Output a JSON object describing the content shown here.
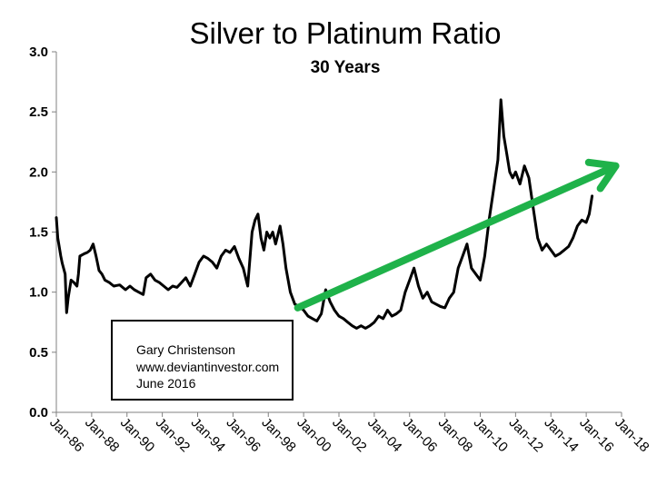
{
  "chart_data": {
    "type": "line",
    "title": "Silver to Platinum Ratio",
    "subtitle": "30 Years",
    "xlabel": "",
    "ylabel": "",
    "ylim": [
      0,
      3.0
    ],
    "y_ticks": [
      "0.0",
      "0.5",
      "1.0",
      "1.5",
      "2.0",
      "2.5",
      "3.0"
    ],
    "x_range": [
      "Jan-86",
      "Jan-18"
    ],
    "x_ticks": [
      "Jan-86",
      "Jan-88",
      "Jan-90",
      "Jan-92",
      "Jan-94",
      "Jan-96",
      "Jan-98",
      "Jan-00",
      "Jan-02",
      "Jan-04",
      "Jan-06",
      "Jan-08",
      "Jan-10",
      "Jan-12",
      "Jan-14",
      "Jan-16",
      "Jan-18"
    ],
    "grid": false,
    "legend": "none",
    "series": [
      {
        "color": "#000000",
        "points": [
          [
            "1986-01",
            1.62
          ],
          [
            "1986-02",
            1.45
          ],
          [
            "1986-04",
            1.3
          ],
          [
            "1986-05",
            1.24
          ],
          [
            "1986-07",
            1.15
          ],
          [
            "1986-08",
            0.83
          ],
          [
            "1986-09",
            0.95
          ],
          [
            "1986-11",
            1.1
          ],
          [
            "1987-01",
            1.08
          ],
          [
            "1987-03",
            1.05
          ],
          [
            "1987-04",
            1.15
          ],
          [
            "1987-05",
            1.3
          ],
          [
            "1987-08",
            1.32
          ],
          [
            "1987-10",
            1.33
          ],
          [
            "1987-12",
            1.35
          ],
          [
            "1988-02",
            1.4
          ],
          [
            "1988-04",
            1.3
          ],
          [
            "1988-06",
            1.18
          ],
          [
            "1988-08",
            1.15
          ],
          [
            "1988-10",
            1.1
          ],
          [
            "1989-01",
            1.08
          ],
          [
            "1989-04",
            1.05
          ],
          [
            "1989-08",
            1.06
          ],
          [
            "1989-12",
            1.02
          ],
          [
            "1990-03",
            1.05
          ],
          [
            "1990-06",
            1.02
          ],
          [
            "1990-09",
            1.0
          ],
          [
            "1990-12",
            0.98
          ],
          [
            "1991-02",
            1.12
          ],
          [
            "1991-05",
            1.15
          ],
          [
            "1991-08",
            1.1
          ],
          [
            "1991-11",
            1.08
          ],
          [
            "1992-02",
            1.05
          ],
          [
            "1992-05",
            1.02
          ],
          [
            "1992-08",
            1.05
          ],
          [
            "1992-11",
            1.04
          ],
          [
            "1993-02",
            1.08
          ],
          [
            "1993-05",
            1.12
          ],
          [
            "1993-08",
            1.05
          ],
          [
            "1993-11",
            1.15
          ],
          [
            "1994-02",
            1.25
          ],
          [
            "1994-05",
            1.3
          ],
          [
            "1994-08",
            1.28
          ],
          [
            "1994-11",
            1.25
          ],
          [
            "1995-02",
            1.2
          ],
          [
            "1995-05",
            1.3
          ],
          [
            "1995-08",
            1.35
          ],
          [
            "1995-11",
            1.33
          ],
          [
            "1996-02",
            1.38
          ],
          [
            "1996-05",
            1.28
          ],
          [
            "1996-08",
            1.2
          ],
          [
            "1996-11",
            1.05
          ],
          [
            "1997-02",
            1.5
          ],
          [
            "1997-04",
            1.6
          ],
          [
            "1997-06",
            1.65
          ],
          [
            "1997-08",
            1.45
          ],
          [
            "1997-10",
            1.35
          ],
          [
            "1997-12",
            1.5
          ],
          [
            "1998-02",
            1.45
          ],
          [
            "1998-04",
            1.5
          ],
          [
            "1998-06",
            1.4
          ],
          [
            "1998-09",
            1.55
          ],
          [
            "1998-11",
            1.4
          ],
          [
            "1999-01",
            1.2
          ],
          [
            "1999-04",
            1.0
          ],
          [
            "1999-07",
            0.9
          ],
          [
            "1999-10",
            0.88
          ],
          [
            "2000-01",
            0.85
          ],
          [
            "2000-04",
            0.8
          ],
          [
            "2000-07",
            0.78
          ],
          [
            "2000-10",
            0.76
          ],
          [
            "2001-01",
            0.82
          ],
          [
            "2001-04",
            1.02
          ],
          [
            "2001-07",
            0.92
          ],
          [
            "2001-10",
            0.85
          ],
          [
            "2002-01",
            0.8
          ],
          [
            "2002-04",
            0.78
          ],
          [
            "2002-07",
            0.75
          ],
          [
            "2002-10",
            0.72
          ],
          [
            "2003-01",
            0.7
          ],
          [
            "2003-04",
            0.72
          ],
          [
            "2003-07",
            0.7
          ],
          [
            "2003-10",
            0.72
          ],
          [
            "2004-01",
            0.75
          ],
          [
            "2004-04",
            0.8
          ],
          [
            "2004-07",
            0.78
          ],
          [
            "2004-10",
            0.85
          ],
          [
            "2005-01",
            0.8
          ],
          [
            "2005-04",
            0.82
          ],
          [
            "2005-07",
            0.85
          ],
          [
            "2005-10",
            1.0
          ],
          [
            "2006-01",
            1.1
          ],
          [
            "2006-04",
            1.2
          ],
          [
            "2006-07",
            1.05
          ],
          [
            "2006-10",
            0.95
          ],
          [
            "2007-01",
            1.0
          ],
          [
            "2007-04",
            0.92
          ],
          [
            "2007-07",
            0.9
          ],
          [
            "2007-10",
            0.88
          ],
          [
            "2008-01",
            0.87
          ],
          [
            "2008-04",
            0.95
          ],
          [
            "2008-07",
            1.0
          ],
          [
            "2008-10",
            1.2
          ],
          [
            "2009-01",
            1.3
          ],
          [
            "2009-04",
            1.4
          ],
          [
            "2009-07",
            1.2
          ],
          [
            "2009-10",
            1.15
          ],
          [
            "2010-01",
            1.1
          ],
          [
            "2010-04",
            1.3
          ],
          [
            "2010-07",
            1.6
          ],
          [
            "2010-10",
            1.85
          ],
          [
            "2011-01",
            2.1
          ],
          [
            "2011-03",
            2.6
          ],
          [
            "2011-05",
            2.3
          ],
          [
            "2011-07",
            2.15
          ],
          [
            "2011-09",
            2.0
          ],
          [
            "2011-11",
            1.95
          ],
          [
            "2012-01",
            2.0
          ],
          [
            "2012-04",
            1.9
          ],
          [
            "2012-07",
            2.05
          ],
          [
            "2012-10",
            1.95
          ],
          [
            "2013-01",
            1.7
          ],
          [
            "2013-04",
            1.45
          ],
          [
            "2013-07",
            1.35
          ],
          [
            "2013-10",
            1.4
          ],
          [
            "2014-01",
            1.35
          ],
          [
            "2014-04",
            1.3
          ],
          [
            "2014-07",
            1.32
          ],
          [
            "2014-10",
            1.35
          ],
          [
            "2015-01",
            1.38
          ],
          [
            "2015-04",
            1.45
          ],
          [
            "2015-07",
            1.55
          ],
          [
            "2015-10",
            1.6
          ],
          [
            "2016-01",
            1.58
          ],
          [
            "2016-03",
            1.65
          ],
          [
            "2016-05",
            1.8
          ]
        ]
      }
    ],
    "trend_arrow": {
      "color": "#1fb24a",
      "from": [
        "1999-09",
        0.87
      ],
      "to": [
        "2017-09",
        2.05
      ]
    },
    "annotation": {
      "lines": [
        "Gary Christenson",
        "www.deviantinvestor.com",
        "June 2016"
      ]
    }
  }
}
